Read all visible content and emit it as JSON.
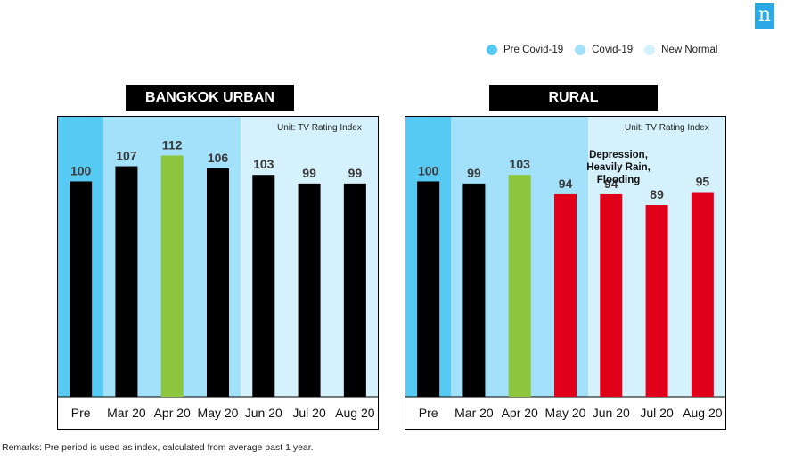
{
  "brand": {
    "logo_text": "n",
    "logo_color": "#2aa9e6"
  },
  "legend": [
    {
      "label": "Pre Covid-19",
      "color": "#57caf4"
    },
    {
      "label": "Covid-19",
      "color": "#a3e0f9"
    },
    {
      "label": "New Normal",
      "color": "#d5f1fc"
    }
  ],
  "colors": {
    "bar_default": "#000000",
    "bar_peak": "#8cc63f",
    "bar_decline": "#e1001a",
    "zone_pre": "#57caf4",
    "zone_covid": "#a3e0f9",
    "zone_new_normal": "#d5f1fc"
  },
  "chart_data": [
    {
      "type": "bar",
      "title": "BANGKOK URBAN",
      "unit": "Unit: TV Rating Index",
      "categories": [
        "Pre",
        "Mar 20",
        "Apr 20",
        "May 20",
        "Jun 20",
        "Jul 20",
        "Aug 20"
      ],
      "values": [
        100,
        107,
        112,
        106,
        103,
        99,
        99
      ],
      "bar_colors": [
        "#000000",
        "#000000",
        "#8cc63f",
        "#000000",
        "#000000",
        "#000000",
        "#000000"
      ],
      "zones": [
        {
          "label": "Pre Covid-19",
          "from": 0,
          "to": 0
        },
        {
          "label": "Covid-19",
          "from": 1,
          "to": 3
        },
        {
          "label": "New Normal",
          "from": 4,
          "to": 6
        }
      ],
      "ylim": [
        0,
        130
      ],
      "data_labels": true,
      "grid": false
    },
    {
      "type": "bar",
      "title": "RURAL",
      "unit": "Unit: TV Rating Index",
      "annotation": [
        "Depression,",
        "Heavily Rain, Flooding"
      ],
      "categories": [
        "Pre",
        "Mar 20",
        "Apr 20",
        "May 20",
        "Jun 20",
        "Jul 20",
        "Aug 20"
      ],
      "values": [
        100,
        99,
        103,
        94,
        94,
        89,
        95
      ],
      "bar_colors": [
        "#000000",
        "#000000",
        "#8cc63f",
        "#e1001a",
        "#e1001a",
        "#e1001a",
        "#e1001a"
      ],
      "zones": [
        {
          "label": "Pre Covid-19",
          "from": 0,
          "to": 0
        },
        {
          "label": "Covid-19",
          "from": 1,
          "to": 3
        },
        {
          "label": "New Normal",
          "from": 4,
          "to": 6
        }
      ],
      "ylim": [
        0,
        130
      ],
      "data_labels": true,
      "grid": false
    }
  ],
  "remarks": "Remarks: Pre period is used as index, calculated from average past 1 year."
}
